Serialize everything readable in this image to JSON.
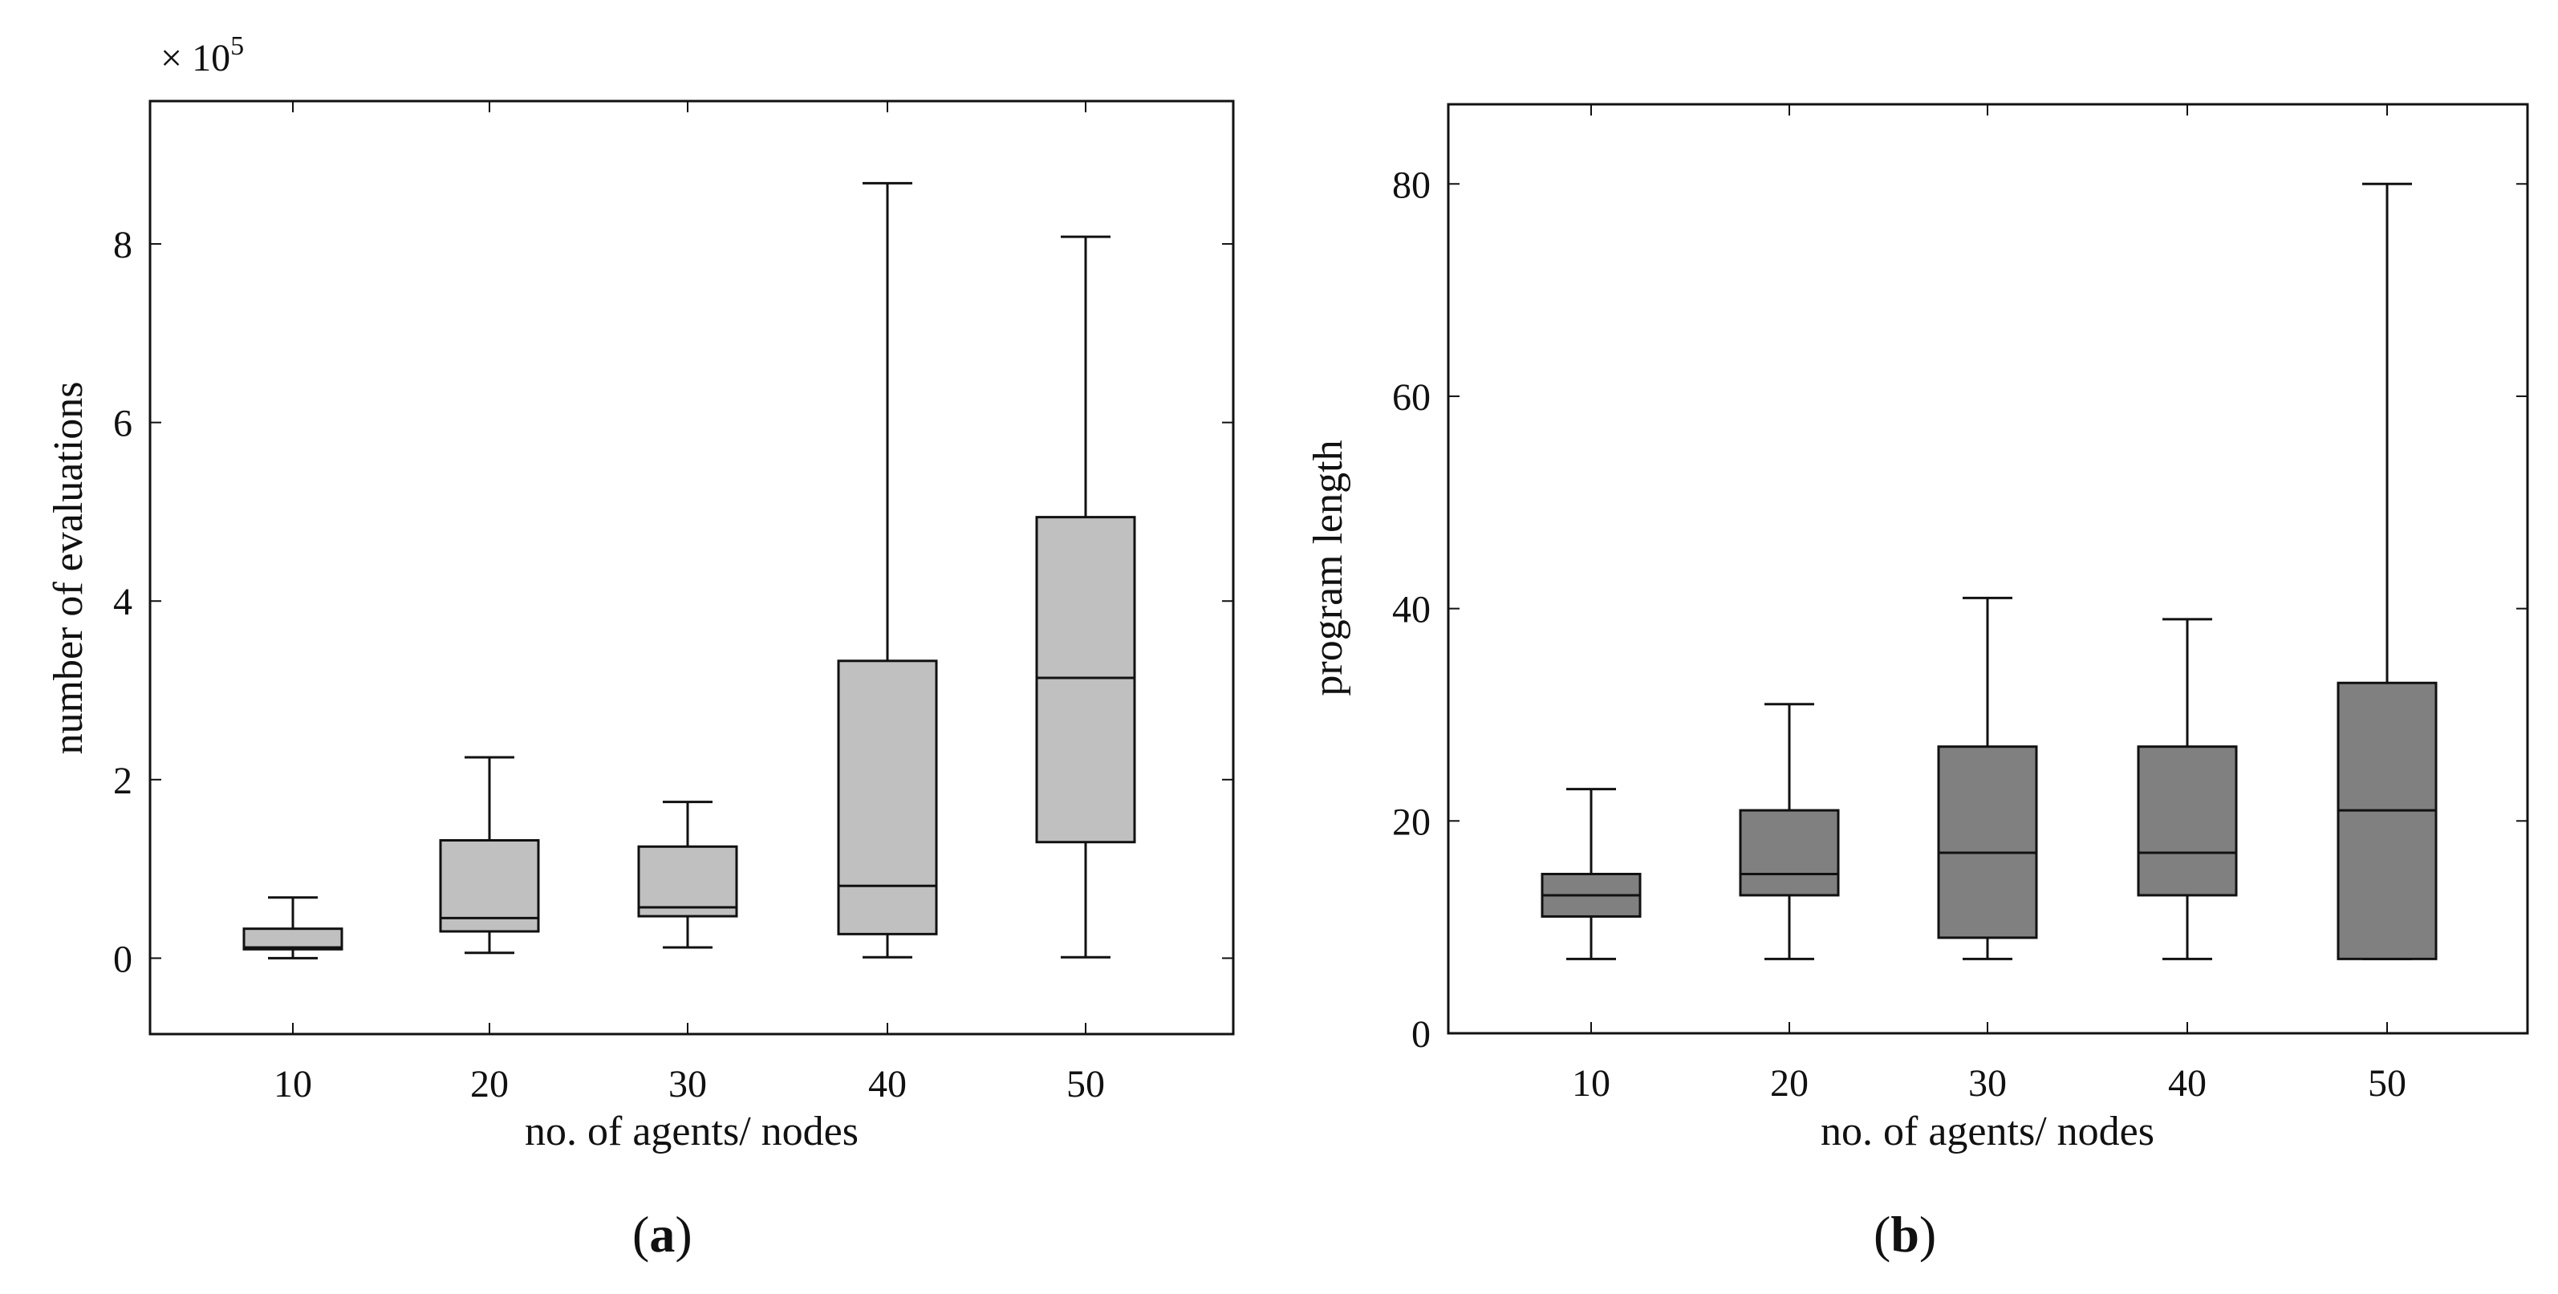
{
  "chart_data": [
    {
      "type": "box",
      "panel_label": "a",
      "title": "",
      "xlabel": "no. of agents/ nodes",
      "ylabel": "number of evaluations",
      "y_multiplier": "× 10",
      "y_multiplier_exp": "5",
      "ylim": [
        -0.85,
        9.6
      ],
      "yticks": [
        0,
        2,
        4,
        6,
        8
      ],
      "ytick_labels": [
        "0",
        "2",
        "4",
        "6",
        "8"
      ],
      "categories": [
        "10",
        "20",
        "30",
        "40",
        "50"
      ],
      "fill": "#c0c0c0",
      "stroke": "#111111",
      "boxes": [
        {
          "min": 0.0,
          "q1": 0.1,
          "median": 0.12,
          "q3": 0.33,
          "max": 0.68
        },
        {
          "min": 0.06,
          "q1": 0.3,
          "median": 0.45,
          "q3": 1.32,
          "max": 2.25
        },
        {
          "min": 0.12,
          "q1": 0.47,
          "median": 0.57,
          "q3": 1.25,
          "max": 1.75
        },
        {
          "min": 0.01,
          "q1": 0.27,
          "median": 0.81,
          "q3": 3.33,
          "max": 8.68
        },
        {
          "min": 0.01,
          "q1": 1.3,
          "median": 3.14,
          "q3": 4.94,
          "max": 8.08
        }
      ]
    },
    {
      "type": "box",
      "panel_label": "b",
      "title": "",
      "xlabel": "no. of agents/ nodes",
      "ylabel": "program length",
      "ylim": [
        0,
        87.5
      ],
      "yticks": [
        0,
        20,
        40,
        60,
        80
      ],
      "ytick_labels": [
        "0",
        "20",
        "40",
        "60",
        "80"
      ],
      "categories": [
        "10",
        "20",
        "30",
        "40",
        "50"
      ],
      "fill": "#808080",
      "stroke": "#111111",
      "boxes": [
        {
          "min": 7,
          "q1": 11,
          "median": 13,
          "q3": 15,
          "max": 23
        },
        {
          "min": 7,
          "q1": 13,
          "median": 15,
          "q3": 21,
          "max": 31
        },
        {
          "min": 7,
          "q1": 9,
          "median": 17,
          "q3": 27,
          "max": 41
        },
        {
          "min": 7,
          "q1": 13,
          "median": 17,
          "q3": 27,
          "max": 39
        },
        {
          "min": 7,
          "q1": 7,
          "median": 21,
          "q3": 33,
          "max": 80
        }
      ]
    }
  ]
}
